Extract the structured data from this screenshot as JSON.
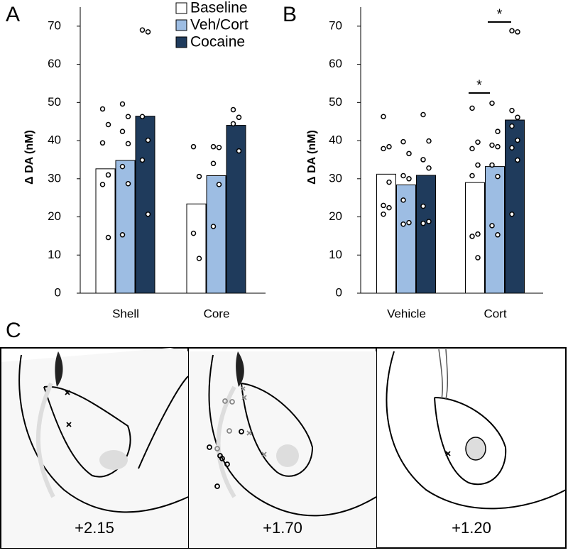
{
  "chart_data": [
    {
      "type": "bar",
      "panel": "A",
      "ylabel": "Δ DA (nM)",
      "categories": [
        "Shell",
        "Core"
      ],
      "ylim": [
        0,
        75
      ],
      "yticks": [
        0,
        10,
        20,
        30,
        40,
        50,
        60,
        70
      ],
      "series": [
        {
          "name": "Baseline",
          "color": "#ffffff",
          "values": [
            32.6,
            23.4
          ],
          "points": [
            [
              48.3,
              44.2,
              39.4,
              31.0,
              28.5,
              14.6
            ],
            [
              38.4,
              30.6,
              15.7,
              9.1
            ]
          ]
        },
        {
          "name": "Veh/Cort",
          "color": "#9dbde3",
          "values": [
            34.8,
            30.8
          ],
          "points": [
            [
              49.6,
              46.3,
              42.4,
              39.2,
              33.2,
              28.7,
              15.3
            ],
            [
              38.4,
              38.2,
              34.0,
              28.5,
              17.5
            ]
          ]
        },
        {
          "name": "Cocaine",
          "color": "#1f3b5c",
          "values": [
            46.4,
            44.0
          ],
          "points": [
            [
              69.0,
              68.5,
              46.3,
              40.1,
              34.9,
              20.7
            ],
            [
              48.1,
              46.1,
              44.4,
              37.3
            ]
          ]
        }
      ]
    },
    {
      "type": "bar",
      "panel": "B",
      "ylabel": "Δ DA (nM)",
      "categories": [
        "Vehicle",
        "Cort"
      ],
      "ylim": [
        0,
        75
      ],
      "yticks": [
        0,
        10,
        20,
        30,
        40,
        50,
        60,
        70
      ],
      "series": [
        {
          "name": "Baseline",
          "color": "#ffffff",
          "values": [
            31.2,
            29.0
          ],
          "points": [
            [
              46.3,
              38.4,
              37.9,
              29.1,
              23.0,
              22.4,
              20.7
            ],
            [
              48.5,
              39.6,
              37.9,
              33.6,
              30.8,
              15.5,
              14.9,
              9.3
            ]
          ]
        },
        {
          "name": "Veh/Cort",
          "color": "#9dbde3",
          "values": [
            28.4,
            33.2
          ],
          "points": [
            [
              39.7,
              36.6,
              30.8,
              30.0,
              24.4,
              18.5,
              18.1
            ],
            [
              49.8,
              42.4,
              38.8,
              38.4,
              33.6,
              30.6,
              17.7,
              15.3
            ]
          ]
        },
        {
          "name": "Cocaine",
          "color": "#1f3b5c",
          "values": [
            30.9,
            45.4
          ],
          "points": [
            [
              46.8,
              39.9,
              35.0,
              32.8,
              22.8,
              18.8,
              18.3
            ],
            [
              68.8,
              68.5,
              47.9,
              46.1,
              43.8,
              40.1,
              38.1,
              34.9,
              20.7
            ]
          ]
        }
      ],
      "annotations": [
        "*",
        "*"
      ]
    }
  ],
  "diagram": {
    "panel": "C",
    "sections": [
      "+2.15",
      "+1.70",
      "+1.20"
    ]
  }
}
